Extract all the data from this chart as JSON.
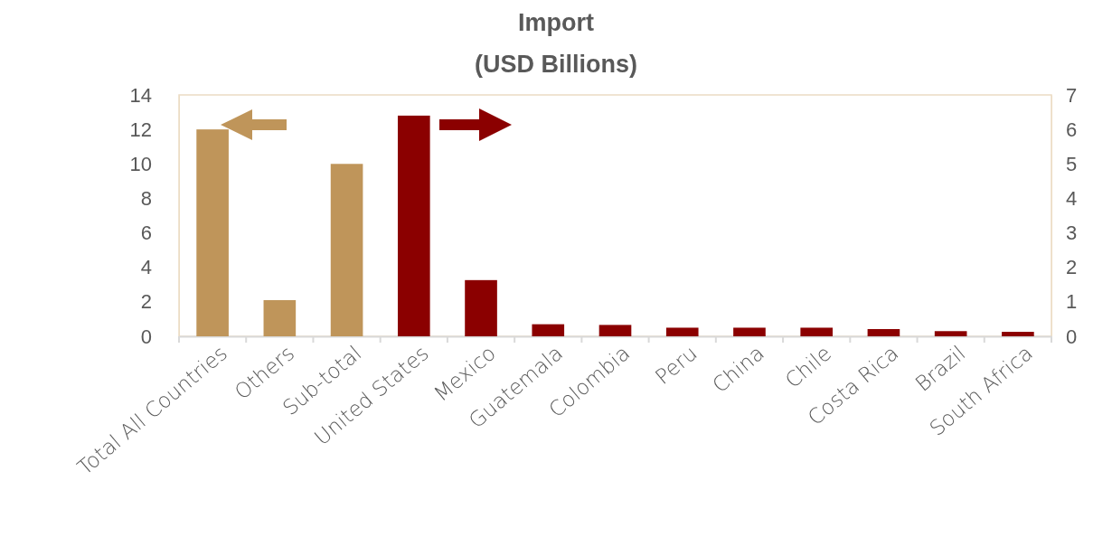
{
  "chart_data": {
    "type": "bar",
    "title": "Import",
    "subtitle": "(USD Billions)",
    "categories": [
      "Total All Countries",
      "Others",
      "Sub-total",
      "United States",
      "Mexico",
      "Guatemala",
      "Colombia",
      "Peru",
      "China",
      "Chile",
      "Costa Rica",
      "Brazil",
      "South Africa"
    ],
    "series": [
      {
        "color": "#bf955a",
        "axis": "y",
        "values": [
          12.0,
          2.1,
          10.0,
          null,
          null,
          null,
          null,
          null,
          null,
          null,
          null,
          null,
          null
        ]
      },
      {
        "color": "#8b0000",
        "axis": "y2",
        "values": [
          null,
          null,
          null,
          6.4,
          1.63,
          0.35,
          0.33,
          0.25,
          0.25,
          0.25,
          0.21,
          0.15,
          0.13
        ]
      }
    ],
    "ylim": [
      0,
      14
    ],
    "yticks": [
      0,
      2,
      4,
      6,
      8,
      10,
      12,
      14
    ],
    "y2lim": [
      0,
      7
    ],
    "y2ticks": [
      0,
      1,
      2,
      3,
      4,
      5,
      6,
      7
    ],
    "grid": false
  }
}
